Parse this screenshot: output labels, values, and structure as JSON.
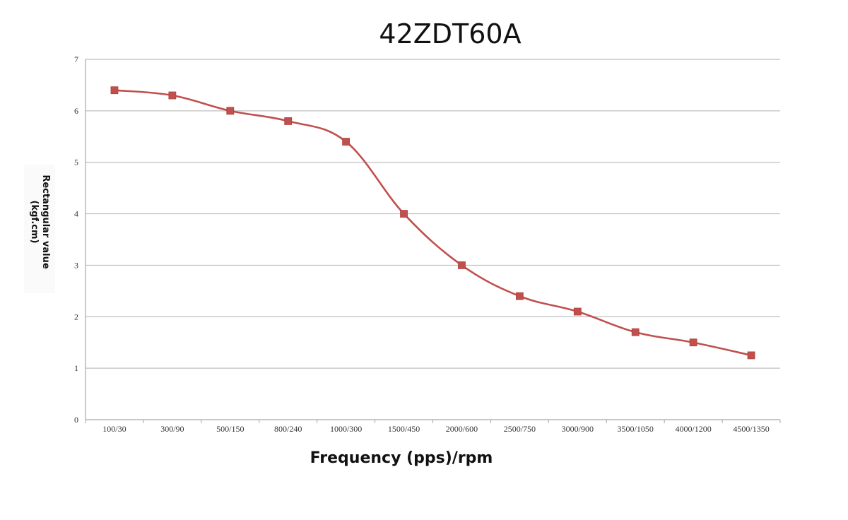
{
  "chart_data": {
    "type": "line",
    "title": "42ZDT60A",
    "xlabel": "Frequency (pps)/rpm",
    "ylabel_lines": [
      "Rectangular value",
      "(kgf.cm)"
    ],
    "categories": [
      "100/30",
      "300/90",
      "500/150",
      "800/240",
      "1000/300",
      "1500/450",
      "2000/600",
      "2500/750",
      "3000/900",
      "3500/1050",
      "4000/1200",
      "4500/1350"
    ],
    "series": [
      {
        "values": [
          6.4,
          6.3,
          6.0,
          5.8,
          5.4,
          4.0,
          3.0,
          2.4,
          2.1,
          1.7,
          1.5,
          1.25
        ]
      }
    ],
    "ylim": [
      0,
      7
    ],
    "yticks": [
      0,
      1,
      2,
      3,
      4,
      5,
      6,
      7
    ],
    "grid": true,
    "legend": false,
    "colors": {
      "line": "#c0504d",
      "marker": "#c0504d",
      "grid": "#bfbfbf",
      "axis": "#a6a6a6"
    }
  }
}
